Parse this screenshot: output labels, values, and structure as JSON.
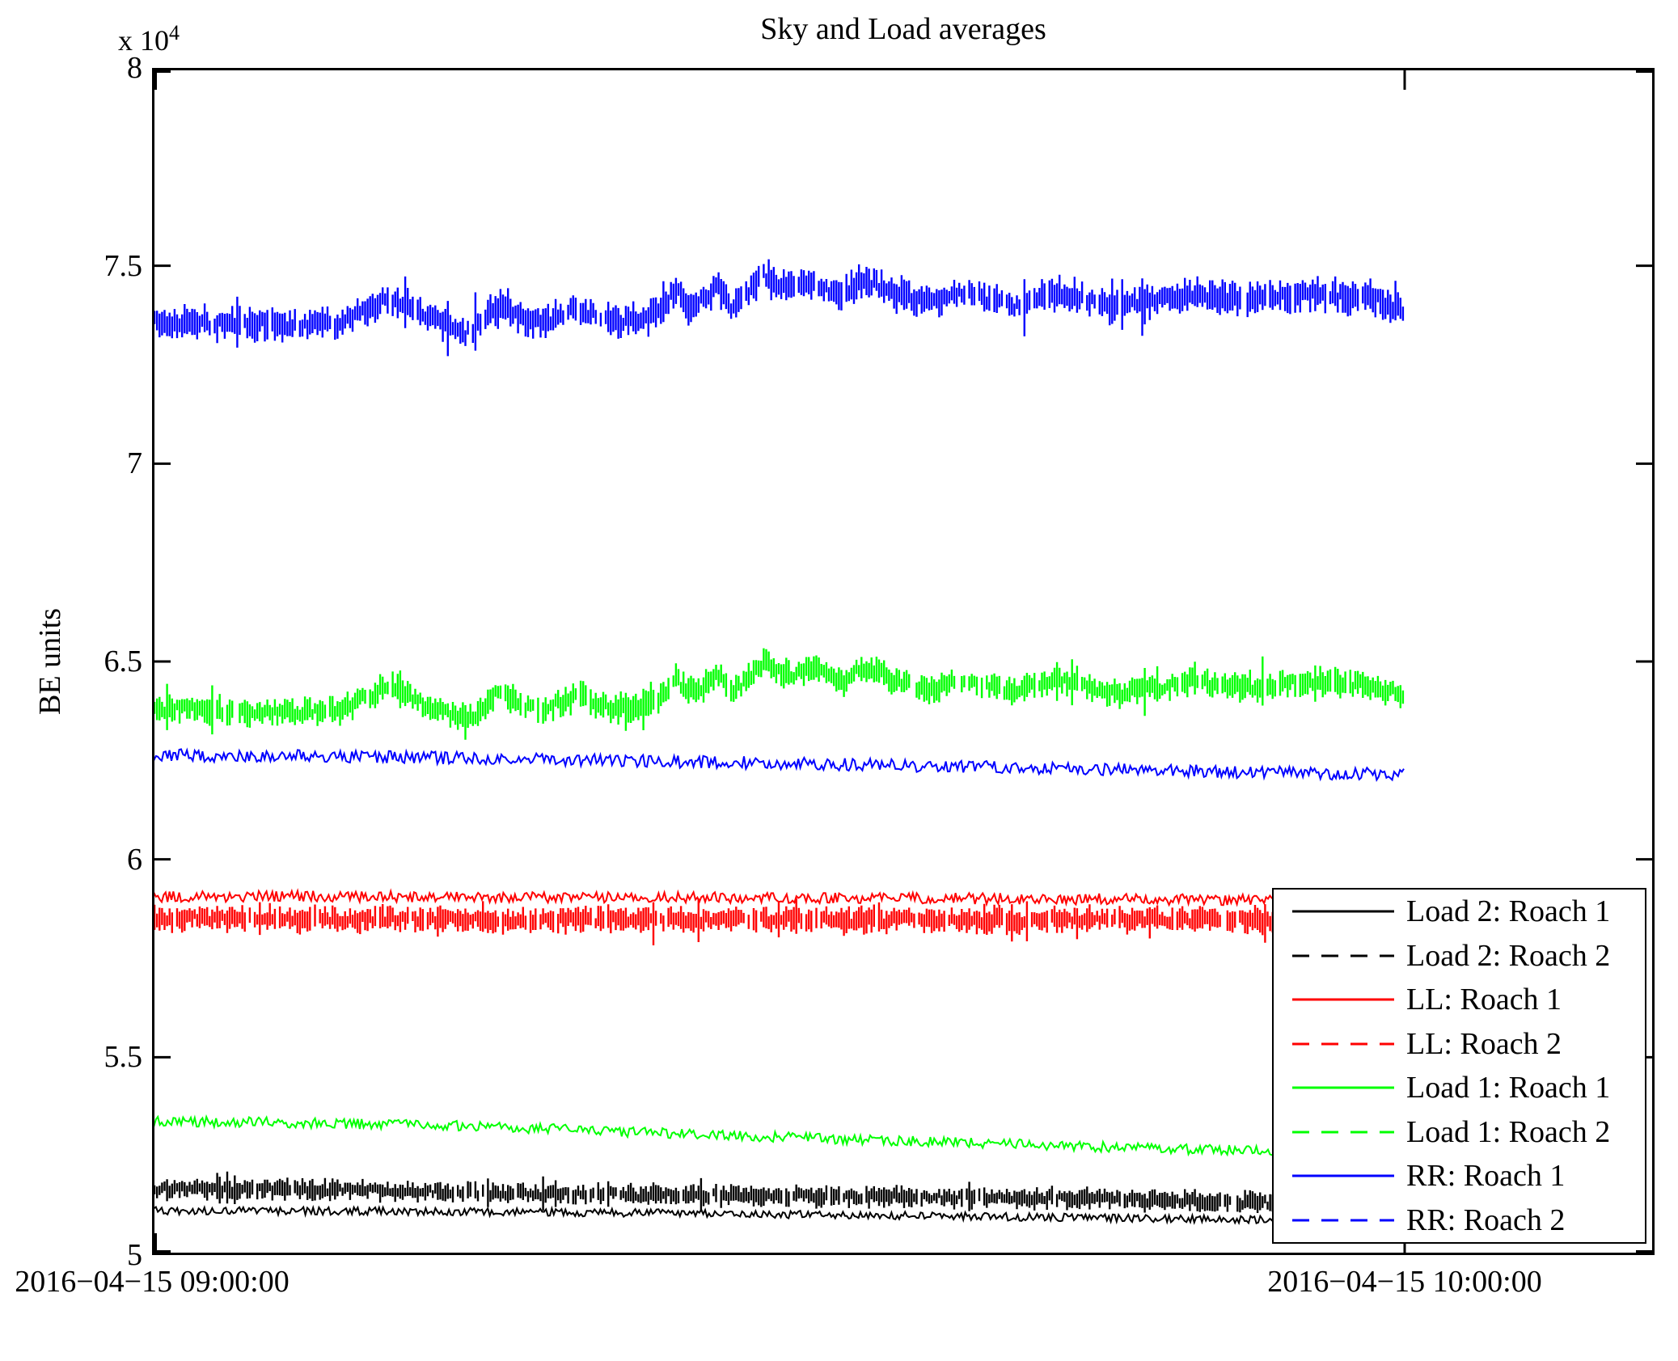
{
  "chart_data": {
    "type": "line",
    "title": "Sky and Load averages",
    "xlabel": "",
    "ylabel": "BE units",
    "y_unit_base": "x 10",
    "y_unit_exp": "4",
    "values_scale": 10000,
    "ylim": [
      5,
      8
    ],
    "x_axis_span_hours": 1.2,
    "grid": false,
    "legend_position": "lower-right-inside",
    "x_ticks": [
      {
        "t": 0.0,
        "label": "2016−04−15 09:00:00"
      },
      {
        "t": 1.0,
        "label": "2016−04−15 10:00:00"
      }
    ],
    "y_ticks": [
      {
        "v": 8.0,
        "label": "8"
      },
      {
        "v": 7.5,
        "label": "7.5"
      },
      {
        "v": 7.0,
        "label": "7"
      },
      {
        "v": 6.5,
        "label": "6.5"
      },
      {
        "v": 6.0,
        "label": "6"
      },
      {
        "v": 5.5,
        "label": "5.5"
      },
      {
        "v": 5.0,
        "label": "5"
      }
    ],
    "shapes": {
      "sky": [
        [
          0.0,
          7.356
        ],
        [
          0.03,
          7.358
        ],
        [
          0.06,
          7.352
        ],
        [
          0.09,
          7.351
        ],
        [
          0.12,
          7.349
        ],
        [
          0.15,
          7.355
        ],
        [
          0.17,
          7.385
        ],
        [
          0.185,
          7.415
        ],
        [
          0.2,
          7.405
        ],
        [
          0.215,
          7.375
        ],
        [
          0.232,
          7.352
        ],
        [
          0.25,
          7.33
        ],
        [
          0.262,
          7.355
        ],
        [
          0.272,
          7.39
        ],
        [
          0.282,
          7.398
        ],
        [
          0.295,
          7.365
        ],
        [
          0.31,
          7.355
        ],
        [
          0.325,
          7.372
        ],
        [
          0.34,
          7.392
        ],
        [
          0.355,
          7.37
        ],
        [
          0.372,
          7.358
        ],
        [
          0.39,
          7.362
        ],
        [
          0.405,
          7.385
        ],
        [
          0.418,
          7.44
        ],
        [
          0.428,
          7.4
        ],
        [
          0.44,
          7.415
        ],
        [
          0.452,
          7.448
        ],
        [
          0.462,
          7.398
        ],
        [
          0.475,
          7.43
        ],
        [
          0.488,
          7.475
        ],
        [
          0.5,
          7.455
        ],
        [
          0.512,
          7.44
        ],
        [
          0.525,
          7.465
        ],
        [
          0.538,
          7.445
        ],
        [
          0.552,
          7.425
        ],
        [
          0.565,
          7.465
        ],
        [
          0.578,
          7.455
        ],
        [
          0.592,
          7.43
        ],
        [
          0.605,
          7.42
        ],
        [
          0.622,
          7.408
        ],
        [
          0.638,
          7.425
        ],
        [
          0.655,
          7.43
        ],
        [
          0.672,
          7.412
        ],
        [
          0.69,
          7.398
        ],
        [
          0.705,
          7.42
        ],
        [
          0.722,
          7.432
        ],
        [
          0.74,
          7.425
        ],
        [
          0.758,
          7.405
        ],
        [
          0.775,
          7.398
        ],
        [
          0.792,
          7.41
        ],
        [
          0.81,
          7.415
        ],
        [
          0.83,
          7.428
        ],
        [
          0.85,
          7.42
        ],
        [
          0.87,
          7.412
        ],
        [
          0.89,
          7.418
        ],
        [
          0.91,
          7.422
        ],
        [
          0.93,
          7.428
        ],
        [
          0.95,
          7.42
        ],
        [
          0.97,
          7.418
        ],
        [
          0.985,
          7.405
        ],
        [
          1.0,
          7.392
        ]
      ]
    },
    "series": [
      {
        "name": "Load 2: Roach 1",
        "color": "#000000",
        "dash": false,
        "style": "zigzag",
        "noise": 0.01,
        "seed": 11,
        "points": [
          [
            0,
            5.112
          ],
          [
            0.2,
            5.111
          ],
          [
            0.4,
            5.106
          ],
          [
            0.6,
            5.1
          ],
          [
            0.8,
            5.092
          ],
          [
            1.0,
            5.085
          ]
        ]
      },
      {
        "name": "Load 2: Roach 2",
        "color": "#000000",
        "dash": true,
        "style": "strokes",
        "noise": 0.016,
        "seed": 22,
        "points": [
          [
            0,
            5.167
          ],
          [
            0.15,
            5.164
          ],
          [
            0.3,
            5.156
          ],
          [
            0.45,
            5.15
          ],
          [
            0.6,
            5.148
          ],
          [
            0.75,
            5.143
          ],
          [
            0.9,
            5.132
          ],
          [
            1.0,
            5.126
          ]
        ]
      },
      {
        "name": "LL: Roach 1",
        "color": "#ff0000",
        "dash": false,
        "style": "zigzag",
        "noise": 0.014,
        "seed": 33,
        "points": [
          [
            0,
            5.905
          ],
          [
            0.1,
            5.907
          ],
          [
            0.2,
            5.906
          ],
          [
            0.35,
            5.904
          ],
          [
            0.5,
            5.903
          ],
          [
            0.65,
            5.901
          ],
          [
            0.8,
            5.899
          ],
          [
            1.0,
            5.896
          ]
        ]
      },
      {
        "name": "LL: Roach 2",
        "color": "#ff0000",
        "dash": true,
        "style": "strokes",
        "noise": 0.02,
        "seed": 44,
        "points": [
          [
            0,
            5.851
          ],
          [
            0.2,
            5.849
          ],
          [
            0.4,
            5.848
          ],
          [
            0.6,
            5.847
          ],
          [
            0.8,
            5.846
          ],
          [
            1.0,
            5.845
          ]
        ]
      },
      {
        "name": "Load 1: Roach 1",
        "color": "#00ff00",
        "dash": false,
        "style": "zigzag",
        "noise": 0.013,
        "seed": 55,
        "points": [
          [
            0,
            5.337
          ],
          [
            0.08,
            5.336
          ],
          [
            0.16,
            5.332
          ],
          [
            0.25,
            5.326
          ],
          [
            0.35,
            5.315
          ],
          [
            0.45,
            5.303
          ],
          [
            0.55,
            5.293
          ],
          [
            0.65,
            5.284
          ],
          [
            0.75,
            5.274
          ],
          [
            0.85,
            5.266
          ],
          [
            1.0,
            5.26
          ]
        ]
      },
      {
        "name": "Load 1: Roach 2",
        "color": "#00ff00",
        "dash": true,
        "style": "strokes",
        "noise": 0.022,
        "seed": 66,
        "base_shape": "sky",
        "offset": -0.978
      },
      {
        "name": "RR: Roach 1",
        "color": "#0000ff",
        "dash": false,
        "style": "zigzag",
        "noise": 0.016,
        "seed": 77,
        "points": [
          [
            0,
            6.263
          ],
          [
            0.1,
            6.261
          ],
          [
            0.2,
            6.258
          ],
          [
            0.3,
            6.253
          ],
          [
            0.4,
            6.248
          ],
          [
            0.5,
            6.243
          ],
          [
            0.6,
            6.237
          ],
          [
            0.7,
            6.231
          ],
          [
            0.8,
            6.225
          ],
          [
            0.9,
            6.219
          ],
          [
            1.0,
            6.214
          ]
        ]
      },
      {
        "name": "RR: Roach 2",
        "color": "#0000ff",
        "dash": true,
        "style": "strokes",
        "noise": 0.026,
        "seed": 88,
        "base_shape": "sky",
        "offset": 0
      }
    ]
  }
}
